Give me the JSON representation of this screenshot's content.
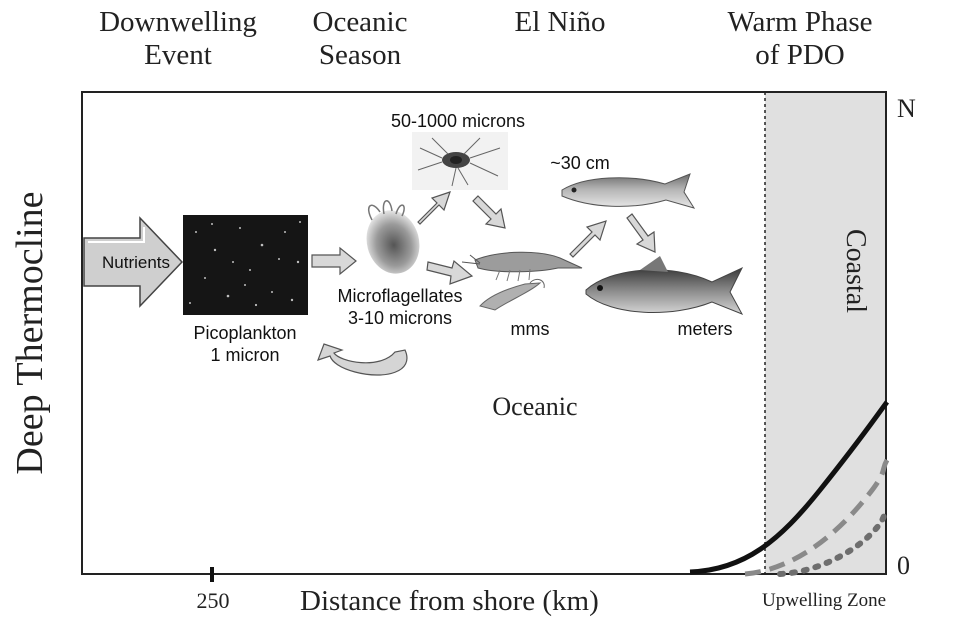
{
  "headers": {
    "downwelling": [
      "Downwelling",
      "Event"
    ],
    "oceanic_season": [
      "Oceanic",
      "Season"
    ],
    "el_nino": "El Niño",
    "warm_phase": [
      "Warm Phase",
      "of PDO"
    ]
  },
  "axes": {
    "y_label": "Deep Thermocline",
    "x_label": "Distance from shore (km)",
    "x_tick": "250",
    "y_top": "N",
    "y_bottom": "0",
    "zone": "Upwelling Zone"
  },
  "labels": {
    "nutrients": "Nutrients",
    "picoplankton": [
      "Picoplankton",
      "1 micron"
    ],
    "zooplankton_size": "50-1000 microns",
    "microflagellates": [
      "Microflagellates",
      "3-10 microns"
    ],
    "fish_size": "~30 cm",
    "mms": "mms",
    "meters": "meters",
    "oceanic": "Oceanic",
    "coastal": "Coastal"
  }
}
